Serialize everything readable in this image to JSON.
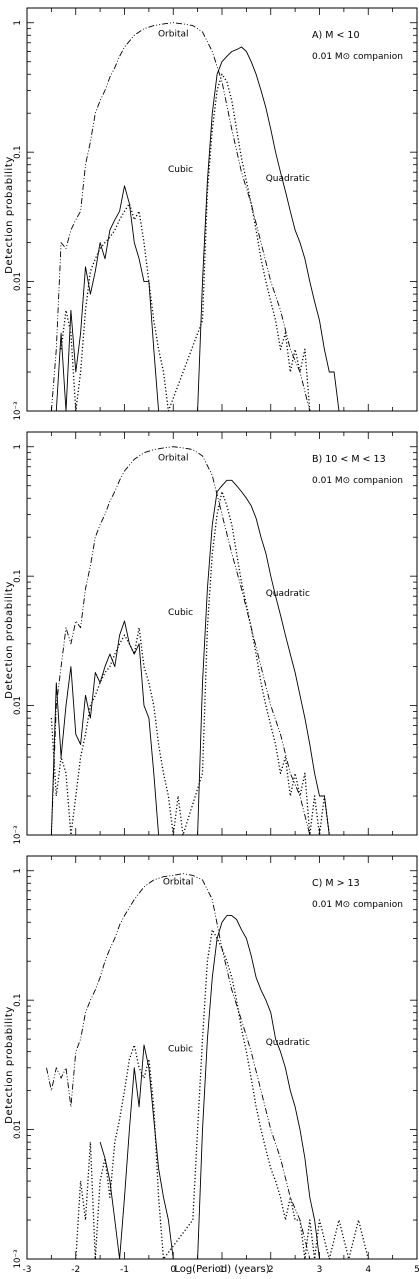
{
  "figure": {
    "ylabel": "Detection probability",
    "xlabel": "Log(Period) (years)",
    "xticks": [
      "-3",
      "-2",
      "-1",
      "0",
      "1",
      "2",
      "3",
      "4",
      "5"
    ],
    "yticks": [
      "10⁻³",
      "0.01",
      "0.1",
      "1"
    ]
  },
  "chart_data": [
    {
      "type": "line",
      "panel_label": "A)  M < 10",
      "companion": "0.01 M⊙ companion",
      "xlim": [
        -3,
        5
      ],
      "ylim": [
        0.001,
        1.3
      ],
      "yscale": "log",
      "annotations": [
        {
          "text": "Orbital",
          "x": 0.0,
          "y": 0.78
        },
        {
          "text": "Cubic",
          "x": 0.15,
          "y": 0.07
        },
        {
          "text": "Quadratic",
          "x": 2.35,
          "y": 0.06
        }
      ],
      "series": [
        {
          "name": "Orbital",
          "style": "dashdotdot",
          "x": [
            -2.5,
            -2.4,
            -2.3,
            -2.2,
            -2.1,
            -2.0,
            -1.9,
            -1.8,
            -1.7,
            -1.6,
            -1.5,
            -1.4,
            -1.3,
            -1.2,
            -1.1,
            -1.0,
            -0.8,
            -0.6,
            -0.4,
            -0.2,
            0.0,
            0.2,
            0.4,
            0.6,
            0.8,
            1.0,
            1.2,
            1.4,
            1.6,
            1.8,
            2.0,
            2.2,
            2.4,
            2.6,
            2.8
          ],
          "y": [
            0.001,
            0.003,
            0.02,
            0.018,
            0.025,
            0.03,
            0.035,
            0.08,
            0.12,
            0.2,
            0.25,
            0.3,
            0.38,
            0.45,
            0.55,
            0.65,
            0.8,
            0.9,
            0.95,
            0.98,
            1.0,
            0.98,
            0.95,
            0.85,
            0.6,
            0.35,
            0.15,
            0.07,
            0.04,
            0.02,
            0.01,
            0.006,
            0.003,
            0.002,
            0.001
          ]
        },
        {
          "name": "Cubic",
          "style": "dotted",
          "x": [
            -2.3,
            -2.2,
            -2.1,
            -2.0,
            -1.9,
            -1.8,
            -1.7,
            -1.6,
            -1.5,
            -1.4,
            -1.3,
            -1.2,
            -1.1,
            -1.0,
            -0.9,
            -0.8,
            -0.7,
            -0.6,
            -0.5,
            -0.4,
            -0.3,
            -0.2,
            -0.1,
            0.6,
            0.7,
            0.8,
            0.9,
            1.0,
            1.1,
            1.2,
            1.3,
            1.4,
            1.5,
            1.6,
            1.7,
            1.8,
            1.9,
            2.0,
            2.1,
            2.2,
            2.3,
            2.4,
            2.5,
            2.6,
            2.7,
            2.8
          ],
          "y": [
            0.003,
            0.006,
            0.004,
            0.001,
            0.002,
            0.006,
            0.012,
            0.015,
            0.018,
            0.02,
            0.022,
            0.025,
            0.03,
            0.035,
            0.04,
            0.03,
            0.035,
            0.02,
            0.01,
            0.005,
            0.003,
            0.002,
            0.001,
            0.005,
            0.05,
            0.15,
            0.3,
            0.4,
            0.35,
            0.25,
            0.15,
            0.09,
            0.06,
            0.04,
            0.025,
            0.015,
            0.01,
            0.007,
            0.005,
            0.003,
            0.004,
            0.002,
            0.003,
            0.002,
            0.003,
            0.001
          ]
        },
        {
          "name": "Quadratic",
          "style": "solid",
          "x": [
            -2.5,
            -2.4,
            -2.3,
            -2.2,
            -2.1,
            -2.0,
            -1.9,
            -1.8,
            -1.7,
            -1.6,
            -1.5,
            -1.4,
            -1.3,
            -1.2,
            -1.1,
            -1.0,
            -0.9,
            -0.8,
            -0.7,
            -0.6,
            -0.5,
            -0.4,
            -0.3,
            0.5,
            0.6,
            0.7,
            0.8,
            0.9,
            1.0,
            1.1,
            1.2,
            1.3,
            1.4,
            1.5,
            1.6,
            1.7,
            1.8,
            1.9,
            2.0,
            2.1,
            2.2,
            2.3,
            2.4,
            2.5,
            2.6,
            2.7,
            2.8,
            2.9,
            3.0,
            3.1,
            3.2,
            3.3,
            3.4
          ],
          "y": [
            0.001,
            0.001,
            0.004,
            0.001,
            0.006,
            0.002,
            0.004,
            0.013,
            0.008,
            0.012,
            0.02,
            0.015,
            0.025,
            0.03,
            0.035,
            0.055,
            0.04,
            0.02,
            0.015,
            0.01,
            0.01,
            0.003,
            0.001,
            0.001,
            0.01,
            0.06,
            0.2,
            0.4,
            0.5,
            0.55,
            0.6,
            0.62,
            0.65,
            0.6,
            0.5,
            0.4,
            0.3,
            0.22,
            0.15,
            0.1,
            0.07,
            0.05,
            0.035,
            0.025,
            0.02,
            0.015,
            0.01,
            0.007,
            0.005,
            0.003,
            0.002,
            0.002,
            0.001
          ]
        }
      ]
    },
    {
      "type": "line",
      "panel_label": "B)  10 < M < 13",
      "companion": "0.01 M⊙ companion",
      "xlim": [
        -3,
        5
      ],
      "ylim": [
        0.001,
        1.3
      ],
      "yscale": "log",
      "annotations": [
        {
          "text": "Orbital",
          "x": 0.0,
          "y": 0.78
        },
        {
          "text": "Cubic",
          "x": 0.15,
          "y": 0.05
        },
        {
          "text": "Quadratic",
          "x": 2.35,
          "y": 0.07
        }
      ],
      "series": [
        {
          "name": "Orbital",
          "style": "dashdotdot",
          "x": [
            -2.5,
            -2.4,
            -2.3,
            -2.2,
            -2.1,
            -2.0,
            -1.9,
            -1.8,
            -1.7,
            -1.6,
            -1.5,
            -1.4,
            -1.3,
            -1.2,
            -1.1,
            -1.0,
            -0.8,
            -0.6,
            -0.4,
            -0.2,
            0.0,
            0.2,
            0.4,
            0.6,
            0.8,
            1.0,
            1.2,
            1.4,
            1.6,
            1.8,
            2.0,
            2.2,
            2.4,
            2.6,
            2.8,
            3.0
          ],
          "y": [
            0.001,
            0.01,
            0.02,
            0.04,
            0.03,
            0.045,
            0.04,
            0.08,
            0.12,
            0.2,
            0.25,
            0.3,
            0.38,
            0.45,
            0.55,
            0.65,
            0.8,
            0.9,
            0.95,
            0.98,
            1.0,
            0.98,
            0.95,
            0.85,
            0.6,
            0.3,
            0.15,
            0.08,
            0.04,
            0.02,
            0.01,
            0.006,
            0.003,
            0.002,
            0.001,
            0.001
          ]
        },
        {
          "name": "Cubic",
          "style": "dotted",
          "x": [
            -2.5,
            -2.4,
            -2.3,
            -2.2,
            -2.1,
            -2.0,
            -1.9,
            -1.8,
            -1.7,
            -1.6,
            -1.5,
            -1.4,
            -1.3,
            -1.2,
            -1.1,
            -1.0,
            -0.9,
            -0.8,
            -0.7,
            -0.6,
            -0.5,
            -0.4,
            -0.3,
            -0.2,
            -0.1,
            0.0,
            0.1,
            0.2,
            0.6,
            0.7,
            0.8,
            0.9,
            1.0,
            1.1,
            1.2,
            1.3,
            1.4,
            1.5,
            1.6,
            1.7,
            1.8,
            1.9,
            2.0,
            2.1,
            2.2,
            2.3,
            2.4,
            2.5,
            2.6,
            2.7,
            2.8,
            2.9,
            3.0,
            3.1,
            3.2
          ],
          "y": [
            0.008,
            0.002,
            0.004,
            0.003,
            0.001,
            0.002,
            0.004,
            0.006,
            0.01,
            0.012,
            0.015,
            0.018,
            0.02,
            0.025,
            0.03,
            0.035,
            0.03,
            0.025,
            0.04,
            0.02,
            0.015,
            0.01,
            0.005,
            0.003,
            0.002,
            0.001,
            0.002,
            0.001,
            0.003,
            0.04,
            0.15,
            0.3,
            0.45,
            0.35,
            0.25,
            0.15,
            0.09,
            0.06,
            0.04,
            0.025,
            0.015,
            0.01,
            0.007,
            0.005,
            0.003,
            0.004,
            0.002,
            0.003,
            0.002,
            0.003,
            0.001,
            0.002,
            0.001,
            0.002,
            0.001
          ]
        },
        {
          "name": "Quadratic",
          "style": "solid",
          "x": [
            -2.5,
            -2.4,
            -2.3,
            -2.2,
            -2.1,
            -2.0,
            -1.9,
            -1.8,
            -1.7,
            -1.6,
            -1.5,
            -1.4,
            -1.3,
            -1.2,
            -1.1,
            -1.0,
            -0.9,
            -0.8,
            -0.7,
            -0.6,
            -0.5,
            -0.4,
            -0.3,
            0.5,
            0.6,
            0.7,
            0.8,
            0.9,
            1.0,
            1.1,
            1.2,
            1.3,
            1.4,
            1.5,
            1.6,
            1.7,
            1.8,
            1.9,
            2.0,
            2.1,
            2.2,
            2.3,
            2.4,
            2.5,
            2.6,
            2.7,
            2.8,
            2.9,
            3.0,
            3.1,
            3.2,
            3.3
          ],
          "y": [
            0.001,
            0.015,
            0.004,
            0.01,
            0.02,
            0.006,
            0.005,
            0.012,
            0.008,
            0.018,
            0.015,
            0.02,
            0.025,
            0.02,
            0.035,
            0.045,
            0.03,
            0.025,
            0.03,
            0.01,
            0.008,
            0.003,
            0.001,
            0.001,
            0.015,
            0.08,
            0.25,
            0.45,
            0.5,
            0.55,
            0.55,
            0.5,
            0.45,
            0.4,
            0.35,
            0.28,
            0.2,
            0.15,
            0.1,
            0.07,
            0.05,
            0.035,
            0.025,
            0.018,
            0.012,
            0.008,
            0.005,
            0.003,
            0.002,
            0.002,
            0.001,
            0.001
          ]
        }
      ]
    },
    {
      "type": "line",
      "panel_label": "C)  M > 13",
      "companion": "0.01 M⊙ companion",
      "xlim": [
        -3,
        5
      ],
      "ylim": [
        0.001,
        1.3
      ],
      "yscale": "log",
      "annotations": [
        {
          "text": "Orbital",
          "x": 0.1,
          "y": 0.78
        },
        {
          "text": "Cubic",
          "x": 0.15,
          "y": 0.04
        },
        {
          "text": "Quadratic",
          "x": 2.35,
          "y": 0.045
        }
      ],
      "series": [
        {
          "name": "Orbital",
          "style": "dashdotdot",
          "x": [
            -2.6,
            -2.5,
            -2.4,
            -2.3,
            -2.2,
            -2.1,
            -2.0,
            -1.9,
            -1.8,
            -1.7,
            -1.6,
            -1.5,
            -1.4,
            -1.3,
            -1.2,
            -1.1,
            -1.0,
            -0.8,
            -0.6,
            -0.4,
            -0.2,
            0.0,
            0.2,
            0.4,
            0.6,
            0.8,
            1.0,
            1.2,
            1.4,
            1.6,
            1.8,
            2.0,
            2.2,
            2.4,
            2.6,
            2.8,
            3.0
          ],
          "y": [
            0.03,
            0.02,
            0.03,
            0.025,
            0.03,
            0.015,
            0.04,
            0.05,
            0.08,
            0.1,
            0.12,
            0.15,
            0.2,
            0.25,
            0.3,
            0.38,
            0.45,
            0.6,
            0.75,
            0.85,
            0.9,
            0.92,
            0.95,
            0.92,
            0.85,
            0.6,
            0.25,
            0.12,
            0.07,
            0.04,
            0.02,
            0.01,
            0.006,
            0.003,
            0.002,
            0.001,
            0.001
          ]
        },
        {
          "name": "Cubic",
          "style": "dotted",
          "x": [
            -2.0,
            -1.9,
            -1.8,
            -1.7,
            -1.6,
            -1.5,
            -1.4,
            -1.3,
            -1.2,
            -1.1,
            -1.0,
            -0.9,
            -0.8,
            -0.7,
            -0.6,
            -0.5,
            -0.4,
            -0.3,
            -0.2,
            0.4,
            0.5,
            0.6,
            0.7,
            0.8,
            0.9,
            1.0,
            1.1,
            1.2,
            1.3,
            1.4,
            1.5,
            1.6,
            1.7,
            1.8,
            1.9,
            2.0,
            2.1,
            2.2,
            2.3,
            2.4,
            2.5,
            2.6,
            2.7,
            2.8,
            2.9,
            3.0,
            3.2,
            3.4,
            3.6,
            3.8,
            4.0
          ],
          "y": [
            0.001,
            0.004,
            0.002,
            0.008,
            0.001,
            0.004,
            0.006,
            0.003,
            0.008,
            0.012,
            0.02,
            0.035,
            0.045,
            0.03,
            0.025,
            0.035,
            0.015,
            0.003,
            0.001,
            0.002,
            0.01,
            0.05,
            0.2,
            0.35,
            0.3,
            0.25,
            0.2,
            0.15,
            0.1,
            0.06,
            0.04,
            0.025,
            0.015,
            0.01,
            0.007,
            0.005,
            0.004,
            0.003,
            0.002,
            0.003,
            0.002,
            0.002,
            0.001,
            0.002,
            0.001,
            0.002,
            0.001,
            0.002,
            0.001,
            0.002,
            0.001
          ]
        },
        {
          "name": "Quadratic",
          "style": "solid",
          "x": [
            -1.5,
            -1.4,
            -1.3,
            -1.2,
            -1.1,
            -1.0,
            -0.9,
            -0.8,
            -0.7,
            -0.6,
            -0.5,
            -0.4,
            -0.3,
            -0.2,
            -0.1,
            0.0,
            0.1,
            0.2,
            0.5,
            0.6,
            0.7,
            0.8,
            0.9,
            1.0,
            1.1,
            1.2,
            1.3,
            1.4,
            1.5,
            1.6,
            1.7,
            1.8,
            1.9,
            2.0,
            2.1,
            2.2,
            2.3,
            2.4,
            2.5,
            2.6,
            2.7,
            2.8,
            2.9,
            3.0,
            3.1
          ],
          "y": [
            0.008,
            0.006,
            0.004,
            0.002,
            0.001,
            0.003,
            0.01,
            0.03,
            0.015,
            0.045,
            0.03,
            0.012,
            0.005,
            0.003,
            0.002,
            0.001,
            0.001,
            0.001,
            0.001,
            0.01,
            0.05,
            0.15,
            0.3,
            0.4,
            0.45,
            0.45,
            0.42,
            0.35,
            0.3,
            0.22,
            0.15,
            0.12,
            0.1,
            0.08,
            0.05,
            0.04,
            0.03,
            0.02,
            0.015,
            0.01,
            0.006,
            0.003,
            0.002,
            0.001,
            0.001
          ]
        }
      ]
    }
  ]
}
